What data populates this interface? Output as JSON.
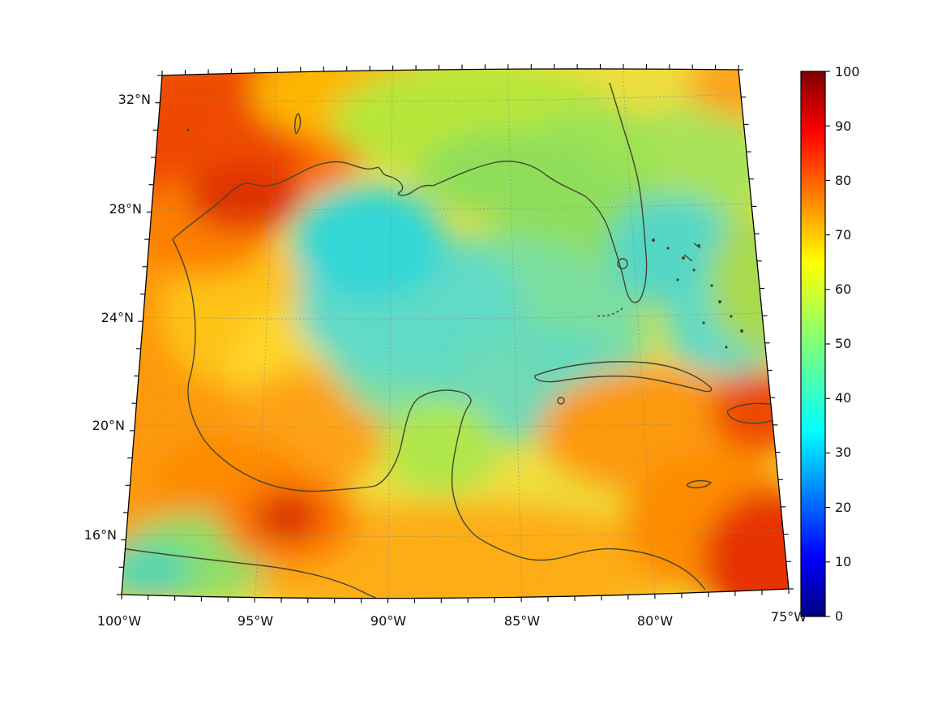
{
  "figure": {
    "background_color": "#ffffff",
    "description": "Geographic heatmap of the Gulf of Mexico and Caribbean region with jet colorbar"
  },
  "axes": {
    "lat_ticks": [
      "32°N",
      "28°N",
      "24°N",
      "20°N",
      "16°N"
    ],
    "lon_ticks": [
      "100°W",
      "95°W",
      "90°W",
      "85°W",
      "80°W",
      "75°W"
    ]
  },
  "colorbar": {
    "min": 0,
    "max": 100,
    "tick_labels": [
      "100",
      "90",
      "80",
      "70",
      "60",
      "50",
      "40",
      "30",
      "20",
      "10",
      "0"
    ],
    "colormap": "jet",
    "gradient_stops_top_to_bottom": [
      "#800000",
      "#ff0000",
      "#ffff00",
      "#7dff7a",
      "#00ffff",
      "#0000ff",
      "#000080"
    ]
  },
  "map_colors": {
    "coastline": "#45452d",
    "gridline": "#8a8a8a",
    "border": "#000000"
  },
  "chart_data": {
    "type": "heatmap",
    "title": "",
    "xlabel": "",
    "ylabel": "",
    "x_tick_labels": [
      "100°W",
      "95°W",
      "90°W",
      "85°W",
      "80°W",
      "75°W"
    ],
    "y_tick_labels": [
      "32°N",
      "28°N",
      "24°N",
      "20°N",
      "16°N"
    ],
    "colorbar_range": [
      0,
      100
    ],
    "legend_position": "right colorbar",
    "grid": "dotted",
    "region_values_approx": [
      {
        "location": "northwest corner (~99°W, 32°N)",
        "value": 80
      },
      {
        "location": "Texas coast (~96°W, 28°N)",
        "value": 87
      },
      {
        "location": "central-west Gulf (~91°W, 27°N)",
        "value": 38
      },
      {
        "location": "central Gulf (~88°W, 24°N)",
        "value": 48
      },
      {
        "location": "northern Gulf coast (~89°W, 30°N)",
        "value": 58
      },
      {
        "location": "Florida peninsula (~82°W, 28°N)",
        "value": 55
      },
      {
        "location": "Atlantic east of Florida (~79°W, 26°N)",
        "value": 45
      },
      {
        "location": "northeast area (~77°W, 31°N)",
        "value": 62
      },
      {
        "location": "Bay of Campeche (~95°W, 19.5°N)",
        "value": 70
      },
      {
        "location": "southern Mexico hotspot (~94.5°W, 16.5°N)",
        "value": 88
      },
      {
        "location": "Pacific coast southwest (~99°W, 15°N)",
        "value": 52
      },
      {
        "location": "Yucatán Channel (~85.5°W, 21.5°N)",
        "value": 50
      },
      {
        "location": "Caribbean south of Cuba (~79°W, 20°N)",
        "value": 75
      },
      {
        "location": "near Hispaniola (~75.5°W, 20°N)",
        "value": 82
      },
      {
        "location": "southeast corner (~76°W, 15°N)",
        "value": 85
      }
    ]
  }
}
